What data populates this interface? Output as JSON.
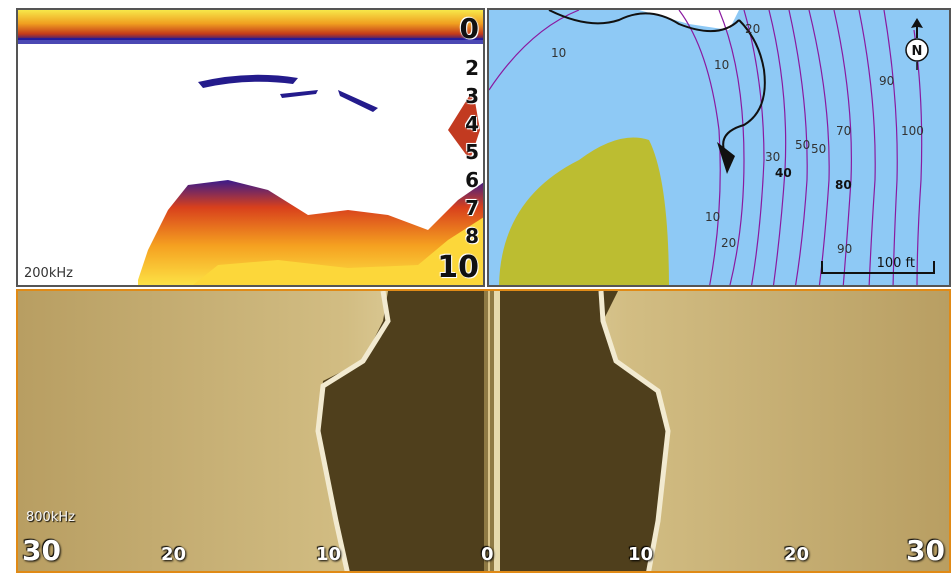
{
  "sonar": {
    "depth_scale": [
      "0",
      "2",
      "3",
      "4",
      "5",
      "6",
      "7",
      "8",
      "10"
    ],
    "frequency": "200kHz"
  },
  "chart": {
    "contour_labels": [
      "10",
      "20",
      "10",
      "90",
      "100",
      "70",
      "50",
      "50",
      "30",
      "40",
      "80",
      "10",
      "20",
      "90"
    ],
    "scale_label": "100 ft",
    "north_label": "N"
  },
  "side_scan": {
    "frequency": "800kHz",
    "range_labels": [
      "30",
      "20",
      "10",
      "0",
      "10",
      "20",
      "30"
    ]
  }
}
